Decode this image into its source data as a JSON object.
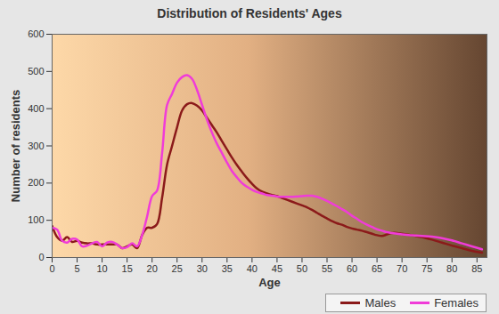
{
  "chart_data": {
    "type": "line",
    "title": "Distribution of Residents' Ages",
    "xlabel": "Age",
    "ylabel": "Number of residents",
    "x": [
      0,
      1,
      2,
      3,
      4,
      5,
      6,
      7,
      8,
      9,
      10,
      11,
      12,
      13,
      14,
      15,
      16,
      17,
      18,
      19,
      20,
      21,
      22,
      23,
      24,
      25,
      26,
      27,
      28,
      29,
      30,
      31,
      32,
      33,
      34,
      35,
      36,
      37,
      38,
      39,
      40,
      41,
      42,
      43,
      44,
      45,
      46,
      47,
      48,
      49,
      50,
      51,
      52,
      53,
      54,
      55,
      56,
      57,
      58,
      59,
      60,
      61,
      62,
      63,
      64,
      65,
      66,
      67,
      68,
      69,
      70,
      72,
      74,
      76,
      78,
      80,
      82,
      84,
      86
    ],
    "series": [
      {
        "name": "Males",
        "color": "#8b1a1a",
        "values": [
          85,
          55,
          45,
          55,
          42,
          45,
          40,
          38,
          38,
          35,
          35,
          35,
          35,
          35,
          25,
          30,
          35,
          25,
          60,
          80,
          80,
          90,
          160,
          250,
          300,
          350,
          395,
          412,
          415,
          408,
          395,
          375,
          355,
          335,
          312,
          290,
          268,
          248,
          230,
          213,
          198,
          185,
          177,
          172,
          168,
          165,
          160,
          155,
          150,
          145,
          140,
          135,
          128,
          120,
          112,
          105,
          98,
          92,
          88,
          82,
          78,
          75,
          72,
          68,
          64,
          60,
          58,
          62,
          66,
          66,
          64,
          60,
          55,
          48,
          40,
          32,
          25,
          18,
          13
        ]
      },
      {
        "name": "Females",
        "color": "#f03cd8",
        "values": [
          80,
          75,
          45,
          40,
          50,
          48,
          30,
          32,
          38,
          42,
          30,
          40,
          42,
          35,
          25,
          28,
          38,
          30,
          60,
          110,
          165,
          180,
          280,
          410,
          440,
          470,
          485,
          490,
          480,
          450,
          410,
          370,
          335,
          305,
          280,
          255,
          232,
          215,
          200,
          190,
          182,
          176,
          172,
          168,
          166,
          164,
          163,
          163,
          163,
          164,
          165,
          166,
          166,
          163,
          158,
          152,
          145,
          138,
          130,
          122,
          112,
          104,
          95,
          88,
          82,
          76,
          72,
          68,
          66,
          64,
          62,
          60,
          58,
          56,
          52,
          46,
          38,
          30,
          22
        ]
      }
    ],
    "xlim": [
      0,
      87
    ],
    "xticks": [
      0,
      5,
      10,
      15,
      20,
      25,
      30,
      35,
      40,
      45,
      50,
      55,
      60,
      65,
      70,
      75,
      80,
      85
    ],
    "ylim": [
      0,
      600
    ],
    "yticks": [
      0,
      100,
      200,
      300,
      400,
      500,
      600
    ],
    "grid": false,
    "legend": "bottom-right"
  }
}
